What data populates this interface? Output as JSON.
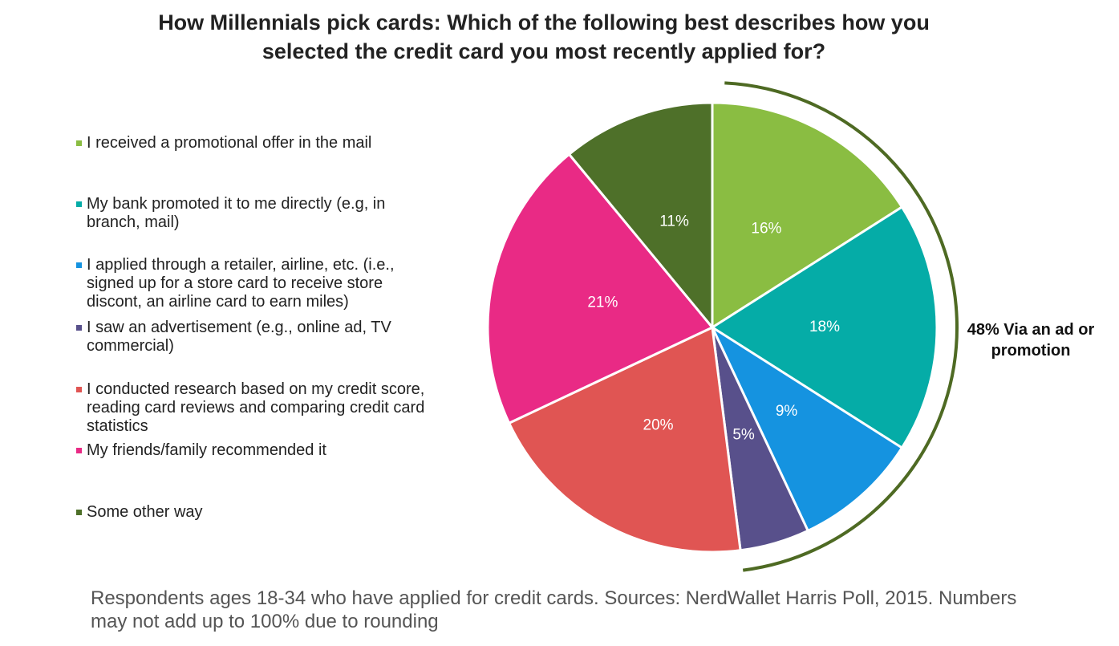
{
  "chart_data": {
    "type": "pie",
    "title": "How Millennials pick cards: Which of the following best describes how you selected the credit card you most recently applied for?",
    "categories": [
      "I received a promotional offer in the mail",
      "My bank promoted it to me directly (e.g, in branch, mail)",
      "I applied through a retailer, airline, etc. (i.e., signed up for a store card to receive store discont, an airline card to earn miles)",
      "I saw an advertisement (e.g., online ad, TV commercial)",
      "I conducted research based on my credit score, reading card reviews and comparing credit card statistics",
      "My friends/family recommended it",
      "Some other way"
    ],
    "values": [
      16,
      18,
      9,
      5,
      20,
      21,
      11
    ],
    "value_labels": [
      "16%",
      "18%",
      "9%",
      "5%",
      "20%",
      "21%",
      "11%"
    ],
    "colors": [
      "#8abd42",
      "#05aca7",
      "#1593e0",
      "#58508b",
      "#e05553",
      "#e92a85",
      "#4e7029"
    ],
    "annotation": "48% Via an ad or promotion",
    "annotation_color": "#4e6a23",
    "footnote": "Respondents ages 18-34 who have applied for credit cards. Sources: NerdWallet Harris Poll, 2015. Numbers may not add up to 100% due to rounding"
  }
}
